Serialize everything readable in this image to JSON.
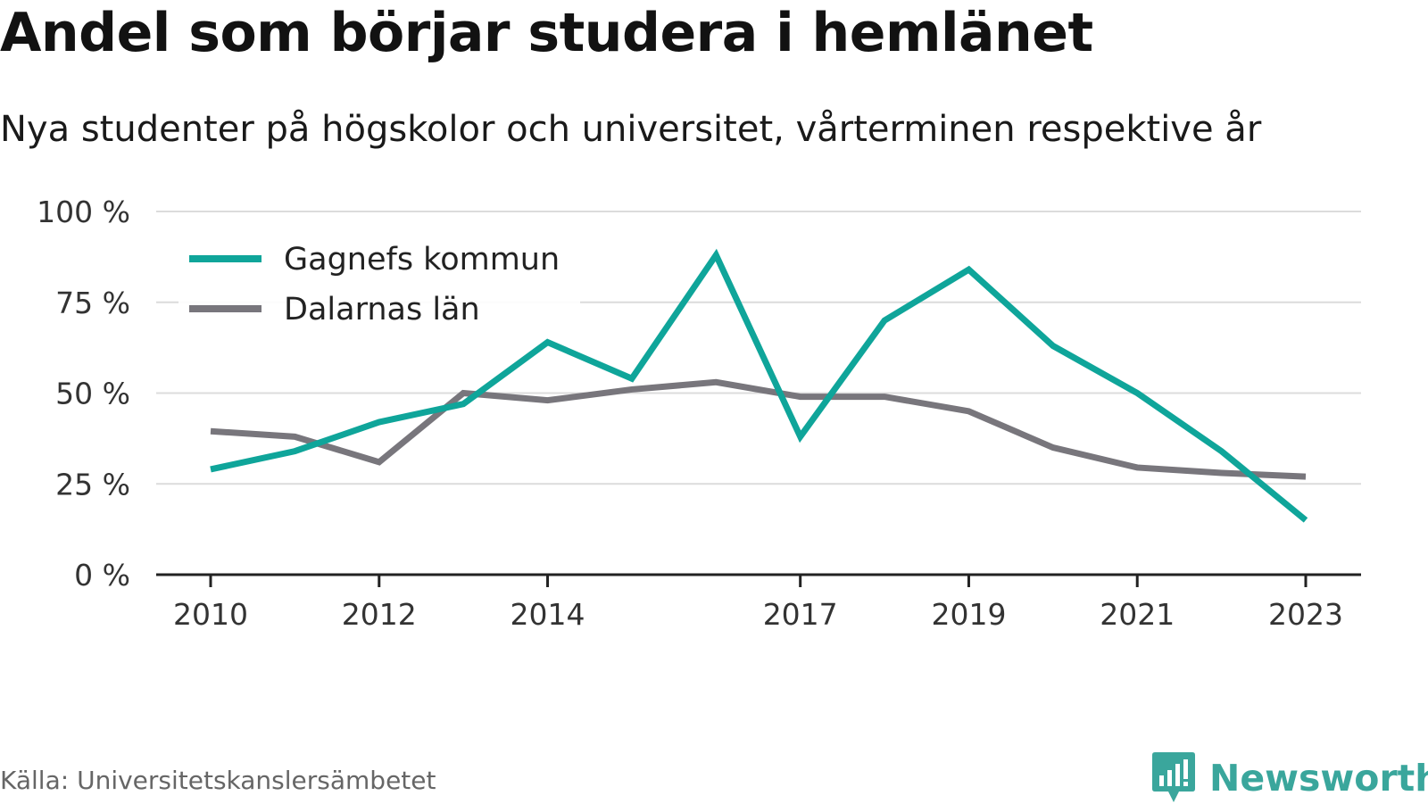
{
  "title": "Andel som börjar studera i hemlänet",
  "subtitle": "Nya studenter på högskolor och universitet, vårterminen respektive år",
  "source": "Källa: Universitetskanslersämbetet",
  "brand": {
    "name": "Newsworthy",
    "color": "#3aa69c"
  },
  "chart_data": {
    "type": "line",
    "title": "",
    "xlabel": "",
    "ylabel": "",
    "ylim": [
      0,
      100
    ],
    "grid": true,
    "legend_position": "top-left",
    "x": [
      2010,
      2011,
      2012,
      2013,
      2014,
      2015,
      2016,
      2017,
      2018,
      2019,
      2020,
      2021,
      2022,
      2023
    ],
    "x_ticks": [
      2010,
      2012,
      2014,
      2017,
      2019,
      2021,
      2023
    ],
    "x_tick_labels": [
      "2010",
      "2012",
      "2014",
      "2017",
      "2019",
      "2021",
      "2023"
    ],
    "y_ticks": [
      0,
      25,
      50,
      75,
      100
    ],
    "y_tick_labels": [
      "0 %",
      "25 %",
      "50 %",
      "75 %",
      "100 %"
    ],
    "series": [
      {
        "name": "Gagnefs kommun",
        "color": "#0fa59a",
        "values": [
          29,
          34,
          42,
          47,
          64,
          54,
          88,
          38,
          70,
          84,
          63,
          50,
          34,
          15
        ]
      },
      {
        "name": "Dalarnas län",
        "color": "#78767c",
        "values": [
          39.5,
          38,
          31,
          50,
          48,
          51,
          53,
          49,
          49,
          45,
          35,
          29.5,
          28,
          27
        ]
      }
    ]
  }
}
